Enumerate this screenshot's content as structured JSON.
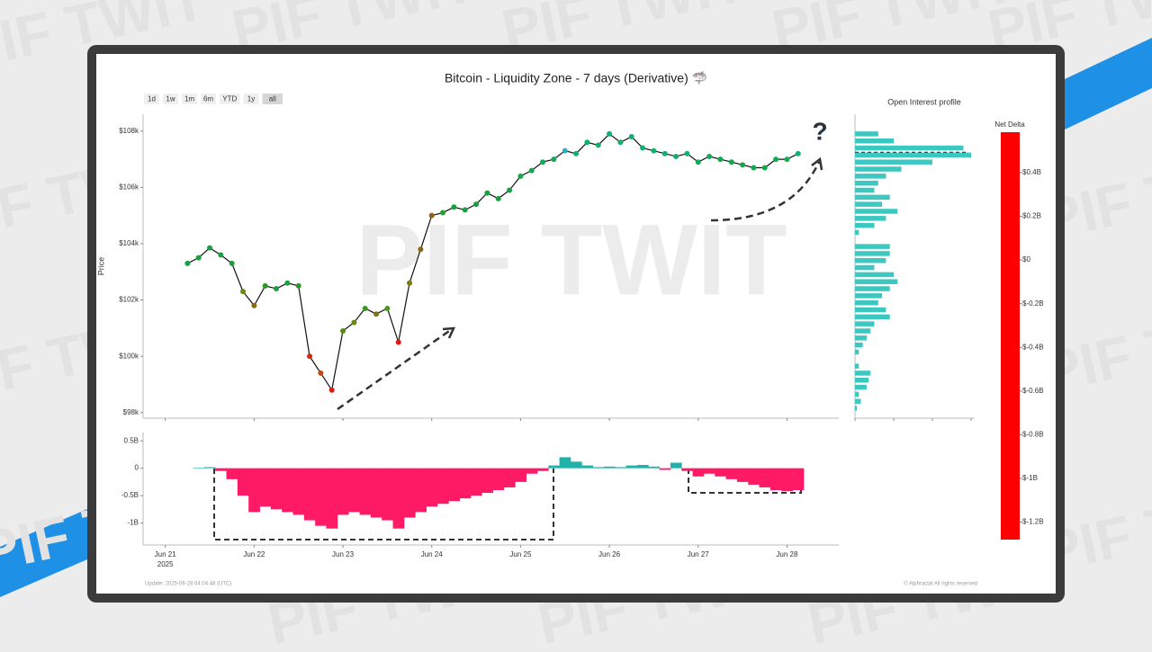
{
  "header": {
    "watermark": "PIF TWIT",
    "range_buttons": [
      "1d",
      "1w",
      "1m",
      "6m",
      "YTD",
      "1y",
      "all"
    ],
    "update_text": "Update: 2025-06-28 04:04:48 (UTC)",
    "copyright": "© Alphractal All rights reserved"
  },
  "chart_data": [
    {
      "type": "line",
      "title": "Bitcoin - Liquidity Zone - 7 days (Derivative) 🦈",
      "y_label": "Price",
      "annotation": "?",
      "line_color": "#111111",
      "x": [
        "2025-06-21T06:00",
        "2025-06-21T09:00",
        "2025-06-21T12:00",
        "2025-06-21T15:00",
        "2025-06-21T18:00",
        "2025-06-21T21:00",
        "2025-06-22T00:00",
        "2025-06-22T03:00",
        "2025-06-22T06:00",
        "2025-06-22T09:00",
        "2025-06-22T12:00",
        "2025-06-22T15:00",
        "2025-06-22T18:00",
        "2025-06-22T21:00",
        "2025-06-23T00:00",
        "2025-06-23T03:00",
        "2025-06-23T06:00",
        "2025-06-23T09:00",
        "2025-06-23T12:00",
        "2025-06-23T15:00",
        "2025-06-23T18:00",
        "2025-06-23T21:00",
        "2025-06-24T00:00",
        "2025-06-24T03:00",
        "2025-06-24T06:00",
        "2025-06-24T09:00",
        "2025-06-24T12:00",
        "2025-06-24T15:00",
        "2025-06-24T18:00",
        "2025-06-24T21:00",
        "2025-06-25T00:00",
        "2025-06-25T03:00",
        "2025-06-25T06:00",
        "2025-06-25T09:00",
        "2025-06-25T12:00",
        "2025-06-25T15:00",
        "2025-06-25T18:00",
        "2025-06-25T21:00",
        "2025-06-26T00:00",
        "2025-06-26T03:00",
        "2025-06-26T06:00",
        "2025-06-26T09:00",
        "2025-06-26T12:00",
        "2025-06-26T15:00",
        "2025-06-26T18:00",
        "2025-06-26T21:00",
        "2025-06-27T00:00",
        "2025-06-27T03:00",
        "2025-06-27T06:00",
        "2025-06-27T09:00",
        "2025-06-27T12:00",
        "2025-06-27T15:00",
        "2025-06-27T18:00",
        "2025-06-27T21:00",
        "2025-06-28T00:00",
        "2025-06-28T03:00"
      ],
      "values": [
        103300,
        103500,
        103850,
        103600,
        103300,
        102300,
        101800,
        102500,
        102400,
        102600,
        102500,
        100000,
        99400,
        98800,
        100900,
        101200,
        101700,
        101500,
        101700,
        100500,
        102600,
        103800,
        105000,
        105100,
        105300,
        105200,
        105400,
        105800,
        105600,
        105900,
        106400,
        106600,
        106900,
        107000,
        107300,
        107200,
        107600,
        107500,
        107900,
        107600,
        107800,
        107400,
        107300,
        107200,
        107100,
        107200,
        106900,
        107100,
        107000,
        106900,
        106800,
        106700,
        106700,
        107000,
        107000,
        107200
      ],
      "point_colors": [
        "#1aa040",
        "#1aa040",
        "#1aa040",
        "#1aa040",
        "#1aa040",
        "#6a8a10",
        "#8a6a10",
        "#2a9a20",
        "#1aa040",
        "#1aa040",
        "#2a9a20",
        "#d02a10",
        "#c04a10",
        "#e01a10",
        "#5a8a10",
        "#6a8a10",
        "#3a9a20",
        "#7a7a10",
        "#4a9a20",
        "#e01a10",
        "#7a7a10",
        "#8a6a10",
        "#9a6010",
        "#2aa030",
        "#17a040",
        "#17a040",
        "#17a040",
        "#17a040",
        "#17a040",
        "#17a040",
        "#14a84a",
        "#14a84a",
        "#12ac58",
        "#12ac58",
        "#20b4c8",
        "#12b070",
        "#12b070",
        "#12b070",
        "#12b070",
        "#12b070",
        "#12b070",
        "#12b070",
        "#12b070",
        "#12b070",
        "#12b070",
        "#12b070",
        "#12ac58",
        "#12ac58",
        "#12a850",
        "#12a850",
        "#12a850",
        "#12a850",
        "#12a850",
        "#12ac58",
        "#12ac58",
        "#12b070"
      ],
      "xlim": [
        "2025-06-20T18:00",
        "2025-06-28T14:00"
      ],
      "xticks": [
        "2025-06-21T00:00",
        "2025-06-22T00:00",
        "2025-06-23T00:00",
        "2025-06-24T00:00",
        "2025-06-25T00:00",
        "2025-06-26T00:00",
        "2025-06-27T00:00",
        "2025-06-28T00:00"
      ],
      "ylim": [
        97800,
        108600
      ],
      "yticks": [
        {
          "value": 98000,
          "label": "$98k"
        },
        {
          "value": 100000,
          "label": "$100k"
        },
        {
          "value": 102000,
          "label": "$102k"
        },
        {
          "value": 104000,
          "label": "$104k"
        },
        {
          "value": 106000,
          "label": "$106k"
        },
        {
          "value": 108000,
          "label": "$108k"
        }
      ]
    },
    {
      "type": "bar",
      "positive_color": "#20b2aa",
      "negative_color": "#ff1a66",
      "x": [
        "2025-06-21T06:00",
        "2025-06-21T09:00",
        "2025-06-21T12:00",
        "2025-06-21T15:00",
        "2025-06-21T18:00",
        "2025-06-21T21:00",
        "2025-06-22T00:00",
        "2025-06-22T03:00",
        "2025-06-22T06:00",
        "2025-06-22T09:00",
        "2025-06-22T12:00",
        "2025-06-22T15:00",
        "2025-06-22T18:00",
        "2025-06-22T21:00",
        "2025-06-23T00:00",
        "2025-06-23T03:00",
        "2025-06-23T06:00",
        "2025-06-23T09:00",
        "2025-06-23T12:00",
        "2025-06-23T15:00",
        "2025-06-23T18:00",
        "2025-06-23T21:00",
        "2025-06-24T00:00",
        "2025-06-24T03:00",
        "2025-06-24T06:00",
        "2025-06-24T09:00",
        "2025-06-24T12:00",
        "2025-06-24T15:00",
        "2025-06-24T18:00",
        "2025-06-24T21:00",
        "2025-06-25T00:00",
        "2025-06-25T03:00",
        "2025-06-25T06:00",
        "2025-06-25T09:00",
        "2025-06-25T12:00",
        "2025-06-25T15:00",
        "2025-06-25T18:00",
        "2025-06-25T21:00",
        "2025-06-26T00:00",
        "2025-06-26T03:00",
        "2025-06-26T06:00",
        "2025-06-26T09:00",
        "2025-06-26T12:00",
        "2025-06-26T15:00",
        "2025-06-26T18:00",
        "2025-06-26T21:00",
        "2025-06-27T00:00",
        "2025-06-27T03:00",
        "2025-06-27T06:00",
        "2025-06-27T09:00",
        "2025-06-27T12:00",
        "2025-06-27T15:00",
        "2025-06-27T18:00",
        "2025-06-27T21:00",
        "2025-06-28T00:00",
        "2025-06-28T03:00"
      ],
      "values": [
        0,
        0.01,
        0.02,
        -0.05,
        -0.2,
        -0.5,
        -0.8,
        -0.7,
        -0.75,
        -0.8,
        -0.85,
        -0.95,
        -1.05,
        -1.1,
        -0.85,
        -0.8,
        -0.85,
        -0.9,
        -0.95,
        -1.1,
        -0.9,
        -0.8,
        -0.7,
        -0.65,
        -0.6,
        -0.55,
        -0.5,
        -0.45,
        -0.4,
        -0.35,
        -0.25,
        -0.1,
        -0.05,
        0.05,
        0.2,
        0.12,
        0.05,
        0.02,
        0.03,
        0.02,
        0.05,
        0.06,
        0.03,
        -0.03,
        0.1,
        -0.05,
        -0.15,
        -0.1,
        -0.15,
        -0.2,
        -0.25,
        -0.3,
        -0.35,
        -0.4,
        -0.42,
        -0.4
      ],
      "xlim": [
        "2025-06-20T18:00",
        "2025-06-28T14:00"
      ],
      "xticks": [
        {
          "value": "2025-06-21T00:00",
          "label": "Jun 21"
        },
        {
          "value": "2025-06-22T00:00",
          "label": "Jun 22"
        },
        {
          "value": "2025-06-23T00:00",
          "label": "Jun 23"
        },
        {
          "value": "2025-06-24T00:00",
          "label": "Jun 24"
        },
        {
          "value": "2025-06-25T00:00",
          "label": "Jun 25"
        },
        {
          "value": "2025-06-26T00:00",
          "label": "Jun 26"
        },
        {
          "value": "2025-06-27T00:00",
          "label": "Jun 27"
        },
        {
          "value": "2025-06-28T00:00",
          "label": "Jun 28"
        }
      ],
      "x_year_label": "2025",
      "ylim": [
        -1.4,
        0.65
      ],
      "yticks": [
        {
          "value": -1,
          "label": "-1B"
        },
        {
          "value": -0.5,
          "label": "-0.5B"
        },
        0,
        {
          "value": 0.5,
          "label": "0.5B"
        }
      ]
    },
    {
      "type": "hbar",
      "title": "Open Interest profile",
      "color": "#3cc8c0",
      "last_price": 107250,
      "levels": [
        107900,
        107650,
        107400,
        107150,
        106900,
        106650,
        106400,
        106150,
        105900,
        105650,
        105400,
        105150,
        104900,
        104650,
        104400,
        104150,
        103900,
        103650,
        103400,
        103150,
        102900,
        102650,
        102400,
        102150,
        101900,
        101650,
        101400,
        101150,
        100900,
        100650,
        100400,
        100150,
        99900,
        99650,
        99400,
        99150,
        98900,
        98650,
        98400,
        98150
      ],
      "values": [
        0.6,
        1.0,
        2.8,
        3.0,
        2.0,
        1.2,
        0.8,
        0.6,
        0.5,
        0.9,
        0.7,
        1.1,
        0.8,
        0.5,
        0.1,
        0,
        0.9,
        0.9,
        0.8,
        0.5,
        1.0,
        1.1,
        0.9,
        0.7,
        0.6,
        0.8,
        0.9,
        0.5,
        0.4,
        0.3,
        0.2,
        0.1,
        0,
        0.1,
        0.4,
        0.35,
        0.3,
        0.1,
        0.15,
        0.05
      ],
      "xlim": [
        0,
        3
      ],
      "xticks": [
        0,
        1,
        2,
        3
      ],
      "ylim": [
        97800,
        108600
      ]
    },
    {
      "type": "colorbar",
      "title": "Net Delta",
      "ylim": [
        -1.28,
        0.585
      ],
      "yticks": [
        {
          "value": -1.2,
          "label": "$-1.2B"
        },
        {
          "value": -1,
          "label": "$-1B"
        },
        {
          "value": -0.8,
          "label": "$-0.8B"
        },
        {
          "value": -0.6,
          "label": "$-0.6B"
        },
        {
          "value": -0.4,
          "label": "$-0.4B"
        },
        {
          "value": -0.2,
          "label": "$-0.2B"
        },
        {
          "value": 0,
          "label": "$0"
        },
        {
          "value": 0.2,
          "label": "$0.2B"
        },
        {
          "value": 0.4,
          "label": "$0.4B"
        }
      ],
      "colorscale": [
        [
          -1.28,
          "#ff0000"
        ],
        [
          -1.0,
          "#b84010"
        ],
        [
          -0.7,
          "#6a7a10"
        ],
        [
          -0.55,
          "#109020"
        ],
        [
          -0.4,
          "#10a040"
        ],
        [
          0,
          "#20c090"
        ],
        [
          0.3,
          "#20c0d0"
        ],
        [
          0.585,
          "#1e90ff"
        ]
      ]
    }
  ]
}
